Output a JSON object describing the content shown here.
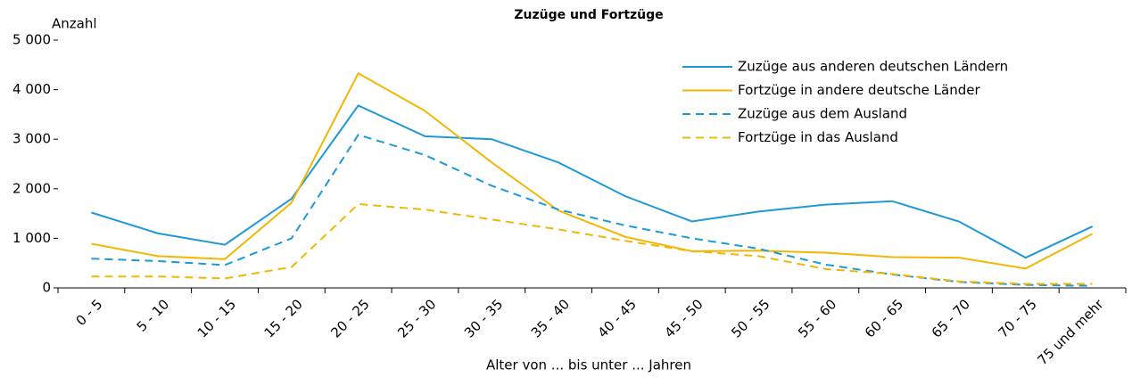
{
  "chart_data": {
    "type": "line",
    "title": "Zuzüge und Fortzüge",
    "y_label": "Anzahl",
    "x_label": "Alter von ... bis unter ... Jahren",
    "categories": [
      "0 - 5",
      "5 - 10",
      "10 - 15",
      "15 - 20",
      "20 - 25",
      "25 - 30",
      "30 - 35",
      "35 - 40",
      "40 - 45",
      "45 - 50",
      "50 - 55",
      "55 - 60",
      "60 - 65",
      "65 - 70",
      "70 - 75",
      "75 und mehr"
    ],
    "series": [
      {
        "name": "Zuzüge aus anderen deutschen Ländern",
        "color": "#1d9ad6",
        "dash": false,
        "values": [
          1520,
          1100,
          870,
          1800,
          3680,
          3060,
          3000,
          2530,
          1850,
          1340,
          1540,
          1680,
          1750,
          1340,
          610,
          1240
        ]
      },
      {
        "name": "Fortzüge in andere deutsche Länder",
        "color": "#f2b705",
        "dash": false,
        "values": [
          890,
          640,
          580,
          1720,
          4330,
          3570,
          2530,
          1560,
          1030,
          740,
          750,
          710,
          620,
          610,
          390,
          1090
        ]
      },
      {
        "name": "Zuzüge aus dem Ausland",
        "color": "#1d9ad6",
        "dash": true,
        "values": [
          590,
          540,
          460,
          1000,
          3090,
          2680,
          2060,
          1580,
          1260,
          1000,
          790,
          470,
          270,
          120,
          60,
          40
        ]
      },
      {
        "name": "Fortzüge in das Ausland",
        "color": "#f2b705",
        "dash": true,
        "values": [
          230,
          230,
          190,
          420,
          1690,
          1580,
          1380,
          1180,
          950,
          740,
          640,
          380,
          280,
          130,
          80,
          80
        ]
      }
    ],
    "ylim": [
      0,
      5000
    ],
    "yticks": [
      0,
      {
        "value": 1000,
        "label": "1 000"
      },
      {
        "value": 2000,
        "label": "2 000"
      },
      {
        "value": 3000,
        "label": "3 000"
      },
      {
        "value": 4000,
        "label": "4 000"
      },
      {
        "value": 5000,
        "label": "5 000"
      }
    ],
    "grid": false,
    "legend": "upper right"
  }
}
